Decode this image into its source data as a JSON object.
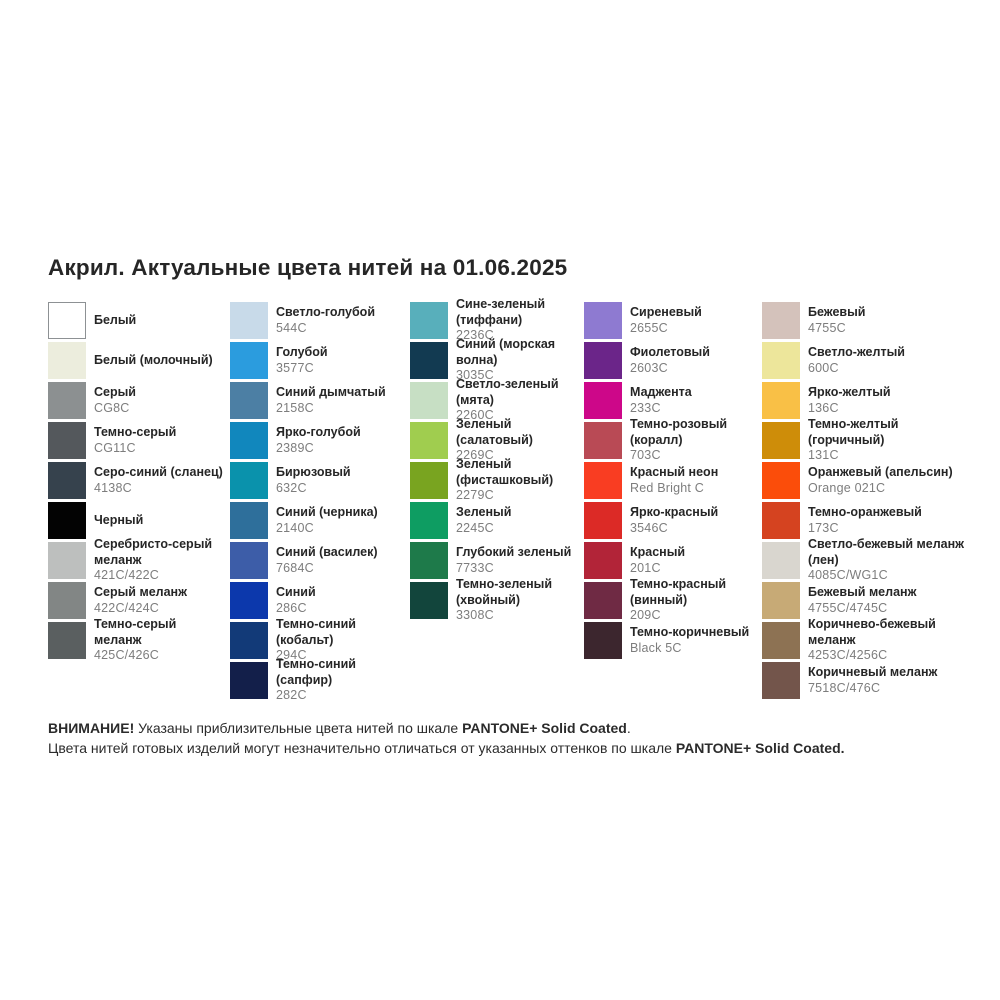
{
  "title": "Акрил. Актуальные цвета нитей на 01.06.2025",
  "columns": [
    {
      "items": [
        {
          "name": "Белый",
          "code": "",
          "color": "#FFFFFF"
        },
        {
          "name": "Белый (молочный)",
          "code": "",
          "color": "#ECEDDD"
        },
        {
          "name": "Серый",
          "code": "CG8C",
          "color": "#8C9091"
        },
        {
          "name": "Темно-серый",
          "code": "CG11C",
          "color": "#54585C"
        },
        {
          "name": "Серо-синий (сланец)",
          "code": "4138C",
          "color": "#36424D"
        },
        {
          "name": "Черный",
          "code": "",
          "color": "#030303"
        },
        {
          "name": "Серебристо-серый\nмеланж",
          "code": "421C/422C",
          "color": "#BDBFBE"
        },
        {
          "name": "Серый меланж",
          "code": "422C/424C",
          "color": "#828685"
        },
        {
          "name": "Темно-серый меланж",
          "code": "425C/426C",
          "color": "#5A5F60"
        }
      ]
    },
    {
      "items": [
        {
          "name": "Светло-голубой",
          "code": "544C",
          "color": "#C8DAE9"
        },
        {
          "name": "Голубой",
          "code": "3577C",
          "color": "#2B9CDE"
        },
        {
          "name": "Синий дымчатый",
          "code": "2158C",
          "color": "#4C7FA4"
        },
        {
          "name": "Ярко-голубой",
          "code": "2389C",
          "color": "#1187BD"
        },
        {
          "name": "Бирюзовый",
          "code": "632C",
          "color": "#0A92AC"
        },
        {
          "name": "Синий (черника)",
          "code": "2140C",
          "color": "#2E6F9B"
        },
        {
          "name": "Синий (василек)",
          "code": "7684C",
          "color": "#3D5DA8"
        },
        {
          "name": "Синий",
          "code": "286C",
          "color": "#0C38AC"
        },
        {
          "name": "Темно-синий (кобальт)",
          "code": "294C",
          "color": "#123A78"
        },
        {
          "name": "Темно-синий (сапфир)",
          "code": "282C",
          "color": "#131F4A"
        }
      ]
    },
    {
      "items": [
        {
          "name": "Сине-зеленый (тиффани)",
          "code": "2236C",
          "color": "#58AFBB"
        },
        {
          "name": "Синий (морская волна)",
          "code": "3035C",
          "color": "#123A51"
        },
        {
          "name": "Светло-зеленый (мята)",
          "code": "2260C",
          "color": "#C7DFC4"
        },
        {
          "name": "Зеленый (салатовый)",
          "code": "2269C",
          "color": "#A0CD4F"
        },
        {
          "name": "Зеленый (фисташковый)",
          "code": "2279C",
          "color": "#79A420"
        },
        {
          "name": "Зеленый",
          "code": "2245C",
          "color": "#0E9D62"
        },
        {
          "name": "Глубокий зеленый",
          "code": "7733C",
          "color": "#1E7A4A"
        },
        {
          "name": "Темно-зеленый (хвойный)",
          "code": "3308C",
          "color": "#12453C"
        }
      ]
    },
    {
      "items": [
        {
          "name": "Сиреневый",
          "code": "2655C",
          "color": "#8E7AD1"
        },
        {
          "name": "Фиолетовый",
          "code": "2603C",
          "color": "#6B2589"
        },
        {
          "name": "Маджента",
          "code": "233C",
          "color": "#CD0789"
        },
        {
          "name": "Темно-розовый (коралл)",
          "code": "703C",
          "color": "#B94A55"
        },
        {
          "name": "Красный неон",
          "code": "Red Bright C",
          "color": "#F93D22"
        },
        {
          "name": "Ярко-красный",
          "code": "3546C",
          "color": "#DC2A26"
        },
        {
          "name": "Красный",
          "code": "201C",
          "color": "#B22438"
        },
        {
          "name": "Темно-красный (винный)",
          "code": "209C",
          "color": "#6F2A44"
        },
        {
          "name": "Темно-коричневый",
          "code": "Black 5C",
          "color": "#3C262E"
        }
      ]
    },
    {
      "items": [
        {
          "name": "Бежевый",
          "code": "4755C",
          "color": "#D4C2BB"
        },
        {
          "name": "Светло-желтый",
          "code": "600C",
          "color": "#EDE69B"
        },
        {
          "name": "Ярко-желтый",
          "code": "136C",
          "color": "#F9C046"
        },
        {
          "name": "Темно-желтый (горчичный)",
          "code": "131C",
          "color": "#CE8D09"
        },
        {
          "name": "Оранжевый (апельсин)",
          "code": "Orange 021C",
          "color": "#FB4D0A"
        },
        {
          "name": "Темно-оранжевый",
          "code": "173C",
          "color": "#D54320"
        },
        {
          "name": "Светло-бежевый меланж (лен)",
          "code": "4085C/WG1C",
          "color": "#D9D6CF"
        },
        {
          "name": "Бежевый меланж",
          "code": "4755C/4745C",
          "color": "#C7AA76"
        },
        {
          "name": "Коричнево-бежевый меланж",
          "code": "4253C/4256C",
          "color": "#8D7253"
        },
        {
          "name": "Коричневый меланж",
          "code": "7518C/476C",
          "color": "#73554B"
        }
      ]
    }
  ],
  "footer": {
    "line1": [
      {
        "text": "ВНИМАНИЕ!",
        "bold": true
      },
      {
        "text": " Указаны приблизительные цвета нитей по шкале ",
        "bold": false
      },
      {
        "text": "PANTONE+ Solid Coated",
        "bold": true
      },
      {
        "text": ".",
        "bold": false
      }
    ],
    "line2": [
      {
        "text": "Цвета нитей готовых изделий могут незначительно отличаться от указанных оттенков по шкале ",
        "bold": false
      },
      {
        "text": "PANTONE+ Solid Coated.",
        "bold": true
      }
    ]
  }
}
